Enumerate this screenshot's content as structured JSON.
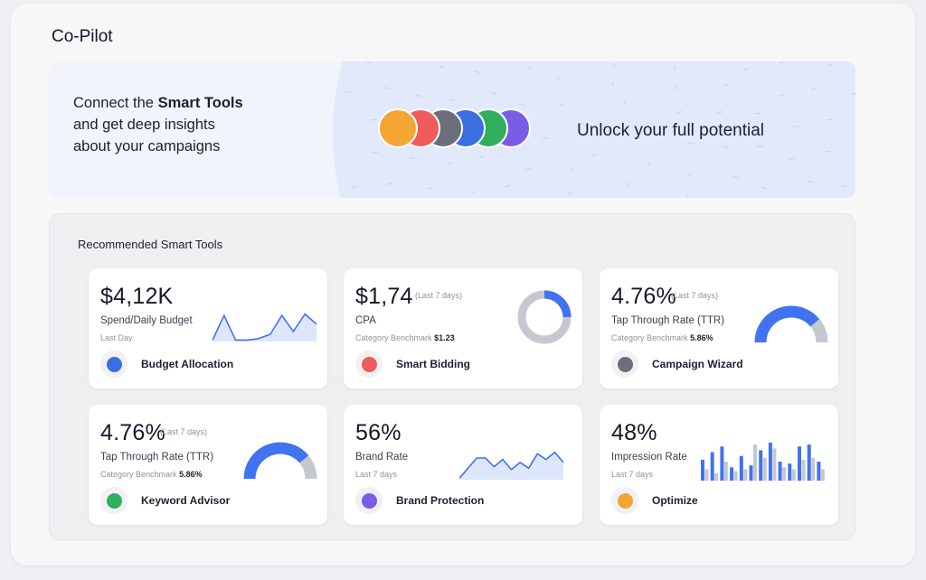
{
  "page": {
    "title": "Co-Pilot"
  },
  "banner": {
    "line1_pre": "Connect the ",
    "line1_bold": "Smart Tools",
    "line2": "and get deep insights",
    "line3": "about your campaigns",
    "cta": "Unlock your full potential",
    "icons": [
      "optimize-icon",
      "smart-bidding-icon",
      "campaign-wizard-icon",
      "budget-allocation-icon",
      "keyword-advisor-icon",
      "brand-protection-icon"
    ],
    "icon_colors": [
      "#f4a533",
      "#ef5a5a",
      "#6b6f7c",
      "#3b6fe0",
      "#2fae5e",
      "#7a5ce6"
    ]
  },
  "section": {
    "title": "Recommended Smart Tools"
  },
  "cards": [
    {
      "value": "$4,12K",
      "period": "",
      "label": "Spend/Daily Budget",
      "sub": "Last Day",
      "bench_label": "",
      "bench_value": "",
      "tool": "Budget Allocation",
      "icon": "budget-allocation-icon",
      "icon_color": "#3b6fe0",
      "viz": "area-line"
    },
    {
      "value": "$1,74",
      "period": "(Last 7 days)",
      "label": "CPA",
      "sub": "",
      "bench_label": "Category Benchmark",
      "bench_value": "$1.23",
      "tool": "Smart Bidding",
      "icon": "smart-bidding-icon",
      "icon_color": "#ef5a5a",
      "viz": "donut"
    },
    {
      "value": "4.76%",
      "period": "(Last 7 days)",
      "label": "Tap Through Rate (TTR)",
      "sub": "",
      "bench_label": "Category Benchmark",
      "bench_value": "5.86%",
      "tool": "Campaign Wizard",
      "icon": "campaign-wizard-icon",
      "icon_color": "#6b6f7c",
      "viz": "gauge"
    },
    {
      "value": "4.76%",
      "period": "(Last 7 days)",
      "label": "Tap Through Rate (TTR)",
      "sub": "",
      "bench_label": "Category Benchmark",
      "bench_value": "5.86%",
      "tool": "Keyword Advisor",
      "icon": "keyword-advisor-icon",
      "icon_color": "#2fae5e",
      "viz": "gauge"
    },
    {
      "value": "56%",
      "period": "",
      "label": "Brand Rate",
      "sub": "Last 7 days",
      "bench_label": "",
      "bench_value": "",
      "tool": "Brand Protection",
      "icon": "brand-protection-icon",
      "icon_color": "#7a5ce6",
      "viz": "area-line"
    },
    {
      "value": "48%",
      "period": "",
      "label": "Impression Rate",
      "sub": "Last 7 days",
      "bench_label": "",
      "bench_value": "",
      "tool": "Optimize",
      "icon": "optimize-icon",
      "icon_color": "#f4a533",
      "viz": "bars"
    }
  ],
  "colors": {
    "accent": "#3f73f0",
    "muted": "#c6c8cf",
    "fill": "#dde6fb"
  },
  "sparklines": {
    "budget": [
      0.05,
      0.9,
      0.05,
      0.05,
      0.1,
      0.25,
      0.9,
      0.35,
      0.95,
      0.6
    ],
    "brand": [
      0.05,
      0.4,
      0.75,
      0.75,
      0.45,
      0.7,
      0.35,
      0.6,
      0.4,
      0.9,
      0.7,
      0.95,
      0.6
    ]
  },
  "donut": {
    "fraction": 0.25
  },
  "gauge": {
    "fraction": 0.78
  },
  "bars": {
    "values": [
      [
        0.55,
        0.3
      ],
      [
        0.75,
        0.2
      ],
      [
        0.9,
        0.5
      ],
      [
        0.35,
        0.25
      ],
      [
        0.65,
        0.3
      ],
      [
        0.4,
        0.95
      ],
      [
        0.8,
        0.6
      ],
      [
        1.0,
        0.85
      ],
      [
        0.5,
        0.35
      ],
      [
        0.45,
        0.3
      ],
      [
        0.9,
        0.55
      ],
      [
        0.95,
        0.6
      ],
      [
        0.5,
        0.3
      ]
    ]
  }
}
